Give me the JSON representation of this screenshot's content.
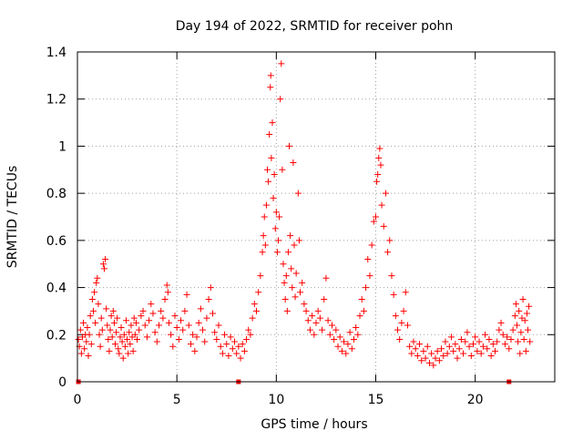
{
  "chart_data": {
    "type": "scatter",
    "title": "Day 194 of 2022, SRMTID for receiver pohn",
    "xlabel": "GPS time / hours",
    "ylabel": "SRMTID / TECUs",
    "xlim": [
      0,
      24
    ],
    "ylim": [
      0,
      1.4
    ],
    "x_ticks": [
      {
        "value": 0,
        "label": "0"
      },
      {
        "value": 5,
        "label": "5"
      },
      {
        "value": 10,
        "label": "10"
      },
      {
        "value": 15,
        "label": "15"
      },
      {
        "value": 20,
        "label": "20"
      }
    ],
    "y_ticks": [
      {
        "value": 0,
        "label": "0"
      },
      {
        "value": 0.2,
        "label": "0.2"
      },
      {
        "value": 0.4,
        "label": "0.4"
      },
      {
        "value": 0.6,
        "label": "0.6"
      },
      {
        "value": 0.8,
        "label": "0.8"
      },
      {
        "value": 1.0,
        "label": "1"
      },
      {
        "value": 1.2,
        "label": "1.2"
      },
      {
        "value": 1.4,
        "label": "1.4"
      }
    ],
    "grid": true,
    "marker": "+",
    "color": "#ff0000",
    "series": [
      {
        "name": "SRMTID",
        "points": [
          [
            0.05,
            0.18
          ],
          [
            0.1,
            0.15
          ],
          [
            0.15,
            0.22
          ],
          [
            0.2,
            0.12
          ],
          [
            0.25,
            0.19
          ],
          [
            0.3,
            0.25
          ],
          [
            0.35,
            0.14
          ],
          [
            0.4,
            0.2
          ],
          [
            0.45,
            0.17
          ],
          [
            0.5,
            0.23
          ],
          [
            0.55,
            0.11
          ],
          [
            0.6,
            0.2
          ],
          [
            0.65,
            0.28
          ],
          [
            0.7,
            0.16
          ],
          [
            0.75,
            0.35
          ],
          [
            0.8,
            0.3
          ],
          [
            0.85,
            0.38
          ],
          [
            0.9,
            0.25
          ],
          [
            0.95,
            0.42
          ],
          [
            1.0,
            0.44
          ],
          [
            1.05,
            0.33
          ],
          [
            1.1,
            0.2
          ],
          [
            1.15,
            0.15
          ],
          [
            1.2,
            0.27
          ],
          [
            1.25,
            0.22
          ],
          [
            1.3,
            0.5
          ],
          [
            1.35,
            0.48
          ],
          [
            1.4,
            0.52
          ],
          [
            1.45,
            0.31
          ],
          [
            1.5,
            0.24
          ],
          [
            1.55,
            0.18
          ],
          [
            1.6,
            0.13
          ],
          [
            1.65,
            0.22
          ],
          [
            1.7,
            0.28
          ],
          [
            1.75,
            0.19
          ],
          [
            1.8,
            0.3
          ],
          [
            1.85,
            0.25
          ],
          [
            1.9,
            0.16
          ],
          [
            1.95,
            0.21
          ],
          [
            2.0,
            0.27
          ],
          [
            2.05,
            0.14
          ],
          [
            2.1,
            0.12
          ],
          [
            2.15,
            0.19
          ],
          [
            2.2,
            0.23
          ],
          [
            2.25,
            0.17
          ],
          [
            2.3,
            0.1
          ],
          [
            2.35,
            0.2
          ],
          [
            2.4,
            0.15
          ],
          [
            2.45,
            0.26
          ],
          [
            2.5,
            0.18
          ],
          [
            2.55,
            0.12
          ],
          [
            2.6,
            0.21
          ],
          [
            2.65,
            0.16
          ],
          [
            2.7,
            0.24
          ],
          [
            2.75,
            0.19
          ],
          [
            2.8,
            0.13
          ],
          [
            2.85,
            0.27
          ],
          [
            2.9,
            0.2
          ],
          [
            2.95,
            0.25
          ],
          [
            3.0,
            0.18
          ],
          [
            3.1,
            0.22
          ],
          [
            3.2,
            0.28
          ],
          [
            3.3,
            0.3
          ],
          [
            3.4,
            0.24
          ],
          [
            3.5,
            0.19
          ],
          [
            3.6,
            0.26
          ],
          [
            3.7,
            0.33
          ],
          [
            3.8,
            0.29
          ],
          [
            3.9,
            0.21
          ],
          [
            4.0,
            0.17
          ],
          [
            4.1,
            0.24
          ],
          [
            4.2,
            0.3
          ],
          [
            4.3,
            0.27
          ],
          [
            4.4,
            0.35
          ],
          [
            4.5,
            0.41
          ],
          [
            4.55,
            0.38
          ],
          [
            4.6,
            0.25
          ],
          [
            4.7,
            0.2
          ],
          [
            4.8,
            0.15
          ],
          [
            4.9,
            0.28
          ],
          [
            5.0,
            0.23
          ],
          [
            5.1,
            0.18
          ],
          [
            5.2,
            0.26
          ],
          [
            5.3,
            0.22
          ],
          [
            5.4,
            0.3
          ],
          [
            5.5,
            0.37
          ],
          [
            5.6,
            0.24
          ],
          [
            5.7,
            0.16
          ],
          [
            5.8,
            0.2
          ],
          [
            5.9,
            0.13
          ],
          [
            6.0,
            0.19
          ],
          [
            6.1,
            0.25
          ],
          [
            6.2,
            0.31
          ],
          [
            6.3,
            0.22
          ],
          [
            6.4,
            0.17
          ],
          [
            6.5,
            0.27
          ],
          [
            6.6,
            0.35
          ],
          [
            6.7,
            0.4
          ],
          [
            6.8,
            0.29
          ],
          [
            6.9,
            0.21
          ],
          [
            7.0,
            0.18
          ],
          [
            7.1,
            0.24
          ],
          [
            7.2,
            0.15
          ],
          [
            7.3,
            0.12
          ],
          [
            7.4,
            0.2
          ],
          [
            7.5,
            0.16
          ],
          [
            7.6,
            0.11
          ],
          [
            7.7,
            0.19
          ],
          [
            7.8,
            0.14
          ],
          [
            7.9,
            0.17
          ],
          [
            8.0,
            0.12
          ],
          [
            8.1,
            0.15
          ],
          [
            8.2,
            0.1
          ],
          [
            8.3,
            0.16
          ],
          [
            8.4,
            0.13
          ],
          [
            8.5,
            0.18
          ],
          [
            8.6,
            0.22
          ],
          [
            8.7,
            0.2
          ],
          [
            8.8,
            0.27
          ],
          [
            8.9,
            0.33
          ],
          [
            9.0,
            0.3
          ],
          [
            9.1,
            0.38
          ],
          [
            9.2,
            0.45
          ],
          [
            9.3,
            0.55
          ],
          [
            9.35,
            0.62
          ],
          [
            9.4,
            0.7
          ],
          [
            9.45,
            0.58
          ],
          [
            9.5,
            0.75
          ],
          [
            9.55,
            0.9
          ],
          [
            9.6,
            0.85
          ],
          [
            9.65,
            1.05
          ],
          [
            9.7,
            1.25
          ],
          [
            9.72,
            1.3
          ],
          [
            9.75,
            0.95
          ],
          [
            9.8,
            1.1
          ],
          [
            9.85,
            0.78
          ],
          [
            9.9,
            0.88
          ],
          [
            9.95,
            0.65
          ],
          [
            10.0,
            0.72
          ],
          [
            10.05,
            0.55
          ],
          [
            10.1,
            0.6
          ],
          [
            10.15,
            0.7
          ],
          [
            10.2,
            1.2
          ],
          [
            10.25,
            1.35
          ],
          [
            10.3,
            0.9
          ],
          [
            10.35,
            0.5
          ],
          [
            10.4,
            0.42
          ],
          [
            10.45,
            0.35
          ],
          [
            10.5,
            0.45
          ],
          [
            10.55,
            0.3
          ],
          [
            10.6,
            0.55
          ],
          [
            10.65,
            1.0
          ],
          [
            10.7,
            0.62
          ],
          [
            10.75,
            0.48
          ],
          [
            10.8,
            0.4
          ],
          [
            10.85,
            0.93
          ],
          [
            10.9,
            0.58
          ],
          [
            10.95,
            0.36
          ],
          [
            11.0,
            0.46
          ],
          [
            11.1,
            0.8
          ],
          [
            11.15,
            0.6
          ],
          [
            11.2,
            0.38
          ],
          [
            11.3,
            0.42
          ],
          [
            11.4,
            0.33
          ],
          [
            11.5,
            0.3
          ],
          [
            11.6,
            0.26
          ],
          [
            11.7,
            0.22
          ],
          [
            11.8,
            0.28
          ],
          [
            11.9,
            0.2
          ],
          [
            12.0,
            0.25
          ],
          [
            12.1,
            0.3
          ],
          [
            12.2,
            0.27
          ],
          [
            12.3,
            0.22
          ],
          [
            12.4,
            0.35
          ],
          [
            12.5,
            0.44
          ],
          [
            12.6,
            0.26
          ],
          [
            12.7,
            0.2
          ],
          [
            12.8,
            0.24
          ],
          [
            12.9,
            0.18
          ],
          [
            13.0,
            0.22
          ],
          [
            13.1,
            0.15
          ],
          [
            13.2,
            0.19
          ],
          [
            13.3,
            0.13
          ],
          [
            13.4,
            0.17
          ],
          [
            13.5,
            0.12
          ],
          [
            13.6,
            0.16
          ],
          [
            13.7,
            0.21
          ],
          [
            13.8,
            0.14
          ],
          [
            13.9,
            0.18
          ],
          [
            14.0,
            0.23
          ],
          [
            14.1,
            0.2
          ],
          [
            14.2,
            0.28
          ],
          [
            14.3,
            0.35
          ],
          [
            14.4,
            0.3
          ],
          [
            14.5,
            0.4
          ],
          [
            14.6,
            0.52
          ],
          [
            14.7,
            0.45
          ],
          [
            14.8,
            0.58
          ],
          [
            14.9,
            0.68
          ],
          [
            15.0,
            0.7
          ],
          [
            15.05,
            0.85
          ],
          [
            15.1,
            0.88
          ],
          [
            15.15,
            0.95
          ],
          [
            15.2,
            0.99
          ],
          [
            15.25,
            0.92
          ],
          [
            15.3,
            0.75
          ],
          [
            15.4,
            0.66
          ],
          [
            15.5,
            0.8
          ],
          [
            15.6,
            0.55
          ],
          [
            15.7,
            0.6
          ],
          [
            15.8,
            0.45
          ],
          [
            15.9,
            0.37
          ],
          [
            16.0,
            0.28
          ],
          [
            16.1,
            0.22
          ],
          [
            16.2,
            0.18
          ],
          [
            16.3,
            0.25
          ],
          [
            16.4,
            0.3
          ],
          [
            16.5,
            0.38
          ],
          [
            16.6,
            0.24
          ],
          [
            16.7,
            0.15
          ],
          [
            16.8,
            0.12
          ],
          [
            16.9,
            0.17
          ],
          [
            17.0,
            0.14
          ],
          [
            17.1,
            0.11
          ],
          [
            17.2,
            0.16
          ],
          [
            17.3,
            0.09
          ],
          [
            17.4,
            0.13
          ],
          [
            17.5,
            0.1
          ],
          [
            17.6,
            0.15
          ],
          [
            17.7,
            0.08
          ],
          [
            17.8,
            0.12
          ],
          [
            17.9,
            0.07
          ],
          [
            18.0,
            0.1
          ],
          [
            18.1,
            0.13
          ],
          [
            18.2,
            0.09
          ],
          [
            18.3,
            0.14
          ],
          [
            18.4,
            0.11
          ],
          [
            18.5,
            0.17
          ],
          [
            18.6,
            0.12
          ],
          [
            18.7,
            0.15
          ],
          [
            18.8,
            0.19
          ],
          [
            18.9,
            0.13
          ],
          [
            19.0,
            0.16
          ],
          [
            19.1,
            0.1
          ],
          [
            19.2,
            0.14
          ],
          [
            19.3,
            0.18
          ],
          [
            19.4,
            0.12
          ],
          [
            19.5,
            0.17
          ],
          [
            19.6,
            0.21
          ],
          [
            19.7,
            0.15
          ],
          [
            19.8,
            0.11
          ],
          [
            19.9,
            0.16
          ],
          [
            20.0,
            0.19
          ],
          [
            20.1,
            0.13
          ],
          [
            20.2,
            0.17
          ],
          [
            20.3,
            0.12
          ],
          [
            20.4,
            0.15
          ],
          [
            20.5,
            0.2
          ],
          [
            20.6,
            0.14
          ],
          [
            20.7,
            0.18
          ],
          [
            20.8,
            0.11
          ],
          [
            20.9,
            0.16
          ],
          [
            21.0,
            0.13
          ],
          [
            21.1,
            0.17
          ],
          [
            21.2,
            0.22
          ],
          [
            21.3,
            0.25
          ],
          [
            21.4,
            0.2
          ],
          [
            21.5,
            0.16
          ],
          [
            21.6,
            0.19
          ],
          [
            21.7,
            0.14
          ],
          [
            21.8,
            0.18
          ],
          [
            21.9,
            0.22
          ],
          [
            22.0,
            0.28
          ],
          [
            22.05,
            0.33
          ],
          [
            22.1,
            0.24
          ],
          [
            22.15,
            0.17
          ],
          [
            22.2,
            0.3
          ],
          [
            22.25,
            0.12
          ],
          [
            22.3,
            0.21
          ],
          [
            22.35,
            0.27
          ],
          [
            22.4,
            0.35
          ],
          [
            22.45,
            0.18
          ],
          [
            22.5,
            0.26
          ],
          [
            22.55,
            0.13
          ],
          [
            22.6,
            0.29
          ],
          [
            22.65,
            0.22
          ],
          [
            22.7,
            0.32
          ],
          [
            22.75,
            0.17
          ]
        ]
      }
    ],
    "baseline_markers": [
      0.05,
      8.1,
      21.7
    ]
  }
}
